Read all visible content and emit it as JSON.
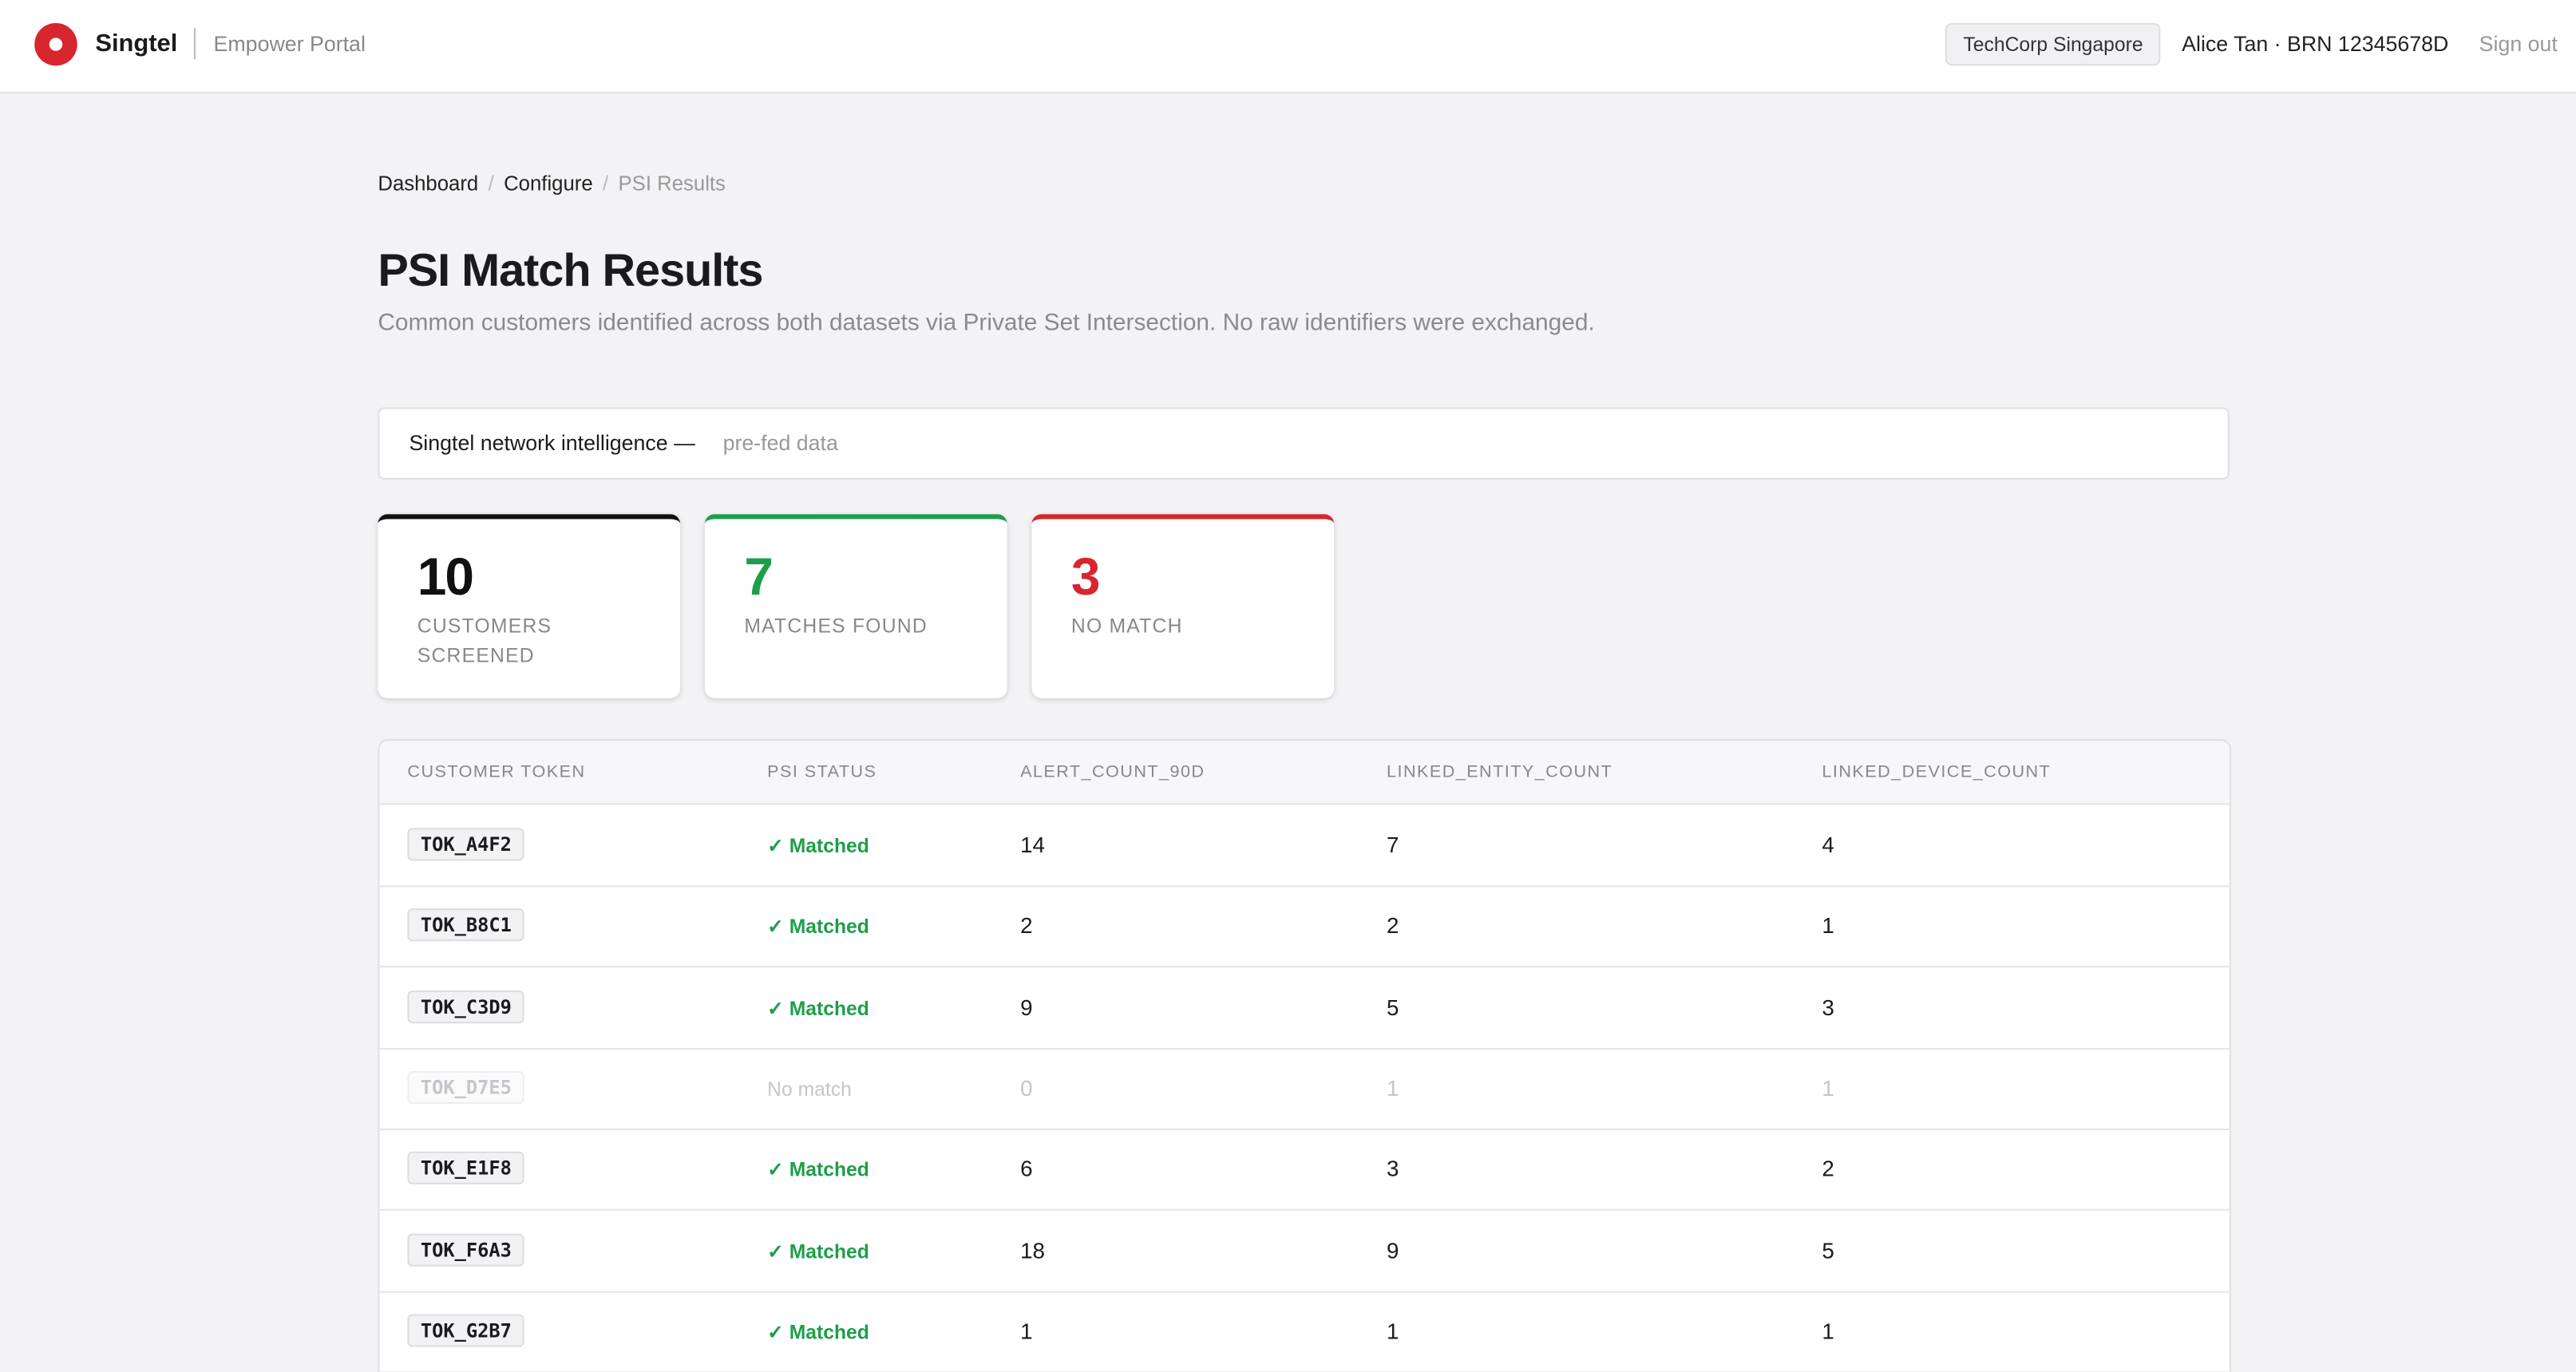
{
  "header": {
    "brand": "Singtel",
    "portal": "Empower Portal",
    "org": "TechCorp Singapore",
    "user": "Alice Tan · BRN 12345678D",
    "signout": "Sign out"
  },
  "breadcrumb": [
    "Dashboard",
    "Configure",
    "PSI Results"
  ],
  "title": "PSI Match Results",
  "subtitle": "Common customers identified across both datasets via Private Set Intersection. No raw identifiers were exchanged.",
  "banner": {
    "label": "Singtel network intelligence —",
    "value": "pre-fed data"
  },
  "stats": [
    {
      "value": "10",
      "label": "CUSTOMERS SCREENED",
      "color": "#111111"
    },
    {
      "value": "7",
      "label": "MATCHES FOUND",
      "color": "#1e9e4a"
    },
    {
      "value": "3",
      "label": "NO MATCH",
      "color": "#d7262e"
    }
  ],
  "table": {
    "columns": [
      "CUSTOMER TOKEN",
      "PSI STATUS",
      "ALERT_COUNT_90D",
      "LINKED_ENTITY_COUNT",
      "LINKED_DEVICE_COUNT"
    ],
    "rows": [
      {
        "cells": [
          "TOK_A4F2",
          "Matched",
          "14",
          "7",
          "4"
        ],
        "matched": true
      },
      {
        "cells": [
          "TOK_B8C1",
          "Matched",
          "2",
          "2",
          "1"
        ],
        "matched": true
      },
      {
        "cells": [
          "TOK_C3D9",
          "Matched",
          "9",
          "5",
          "3"
        ],
        "matched": true
      },
      {
        "cells": [
          "TOK_D7E5",
          "No match",
          "0",
          "1",
          "1"
        ],
        "matched": false
      },
      {
        "cells": [
          "TOK_E1F8",
          "Matched",
          "6",
          "3",
          "2"
        ],
        "matched": true
      },
      {
        "cells": [
          "TOK_F6A3",
          "Matched",
          "18",
          "9",
          "5"
        ],
        "matched": true
      },
      {
        "cells": [
          "TOK_G2B7",
          "Matched",
          "1",
          "1",
          "1"
        ],
        "matched": true
      }
    ]
  }
}
